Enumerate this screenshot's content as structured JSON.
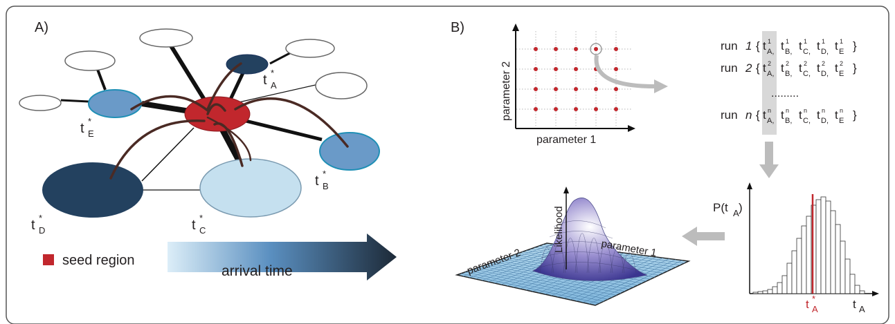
{
  "panel_a": {
    "label": "A)",
    "nodes": {
      "t_a": {
        "base": "t",
        "sup": "*",
        "sub": "A"
      },
      "t_b": {
        "base": "t",
        "sup": "*",
        "sub": "B"
      },
      "t_c": {
        "base": "t",
        "sup": "*",
        "sub": "C"
      },
      "t_d": {
        "base": "t",
        "sup": "*",
        "sub": "D"
      },
      "t_e": {
        "base": "t",
        "sup": "*",
        "sub": "E"
      }
    },
    "legend": {
      "seed_region": "seed region",
      "arrival_time": "arrival time"
    },
    "colors": {
      "seed": "#c1272d",
      "dark": "#23415f",
      "mid": "#6a9ac8",
      "light": "#c5e0ef",
      "edge": "#4a2a24"
    }
  },
  "panel_b": {
    "label": "B)",
    "grid": {
      "xlabel": "parameter 1",
      "ylabel": "parameter 2",
      "dot_color": "#c1272d"
    },
    "runs": [
      {
        "word": "run",
        "idx": "1",
        "sup": "1"
      },
      {
        "word": "run",
        "idx": "2",
        "sup": "2"
      },
      {
        "word": "run",
        "idx": "n",
        "sup": "n"
      }
    ],
    "run_dots": ".........",
    "run_letters": [
      "A",
      "B",
      "C",
      "D",
      "E"
    ],
    "surface": {
      "zlabel": "Likelihood",
      "xlabel": "parameter 1",
      "ylabel": "parameter 2"
    },
    "histogram": {
      "ylabel": "P(t",
      "ylabel_sub": "A",
      "ylabel_close": ")",
      "xlabel": "t",
      "xlabel_sub": "A",
      "marker": {
        "base": "t",
        "sup": "*",
        "sub": "A"
      },
      "marker_color": "#c1272d"
    }
  }
}
